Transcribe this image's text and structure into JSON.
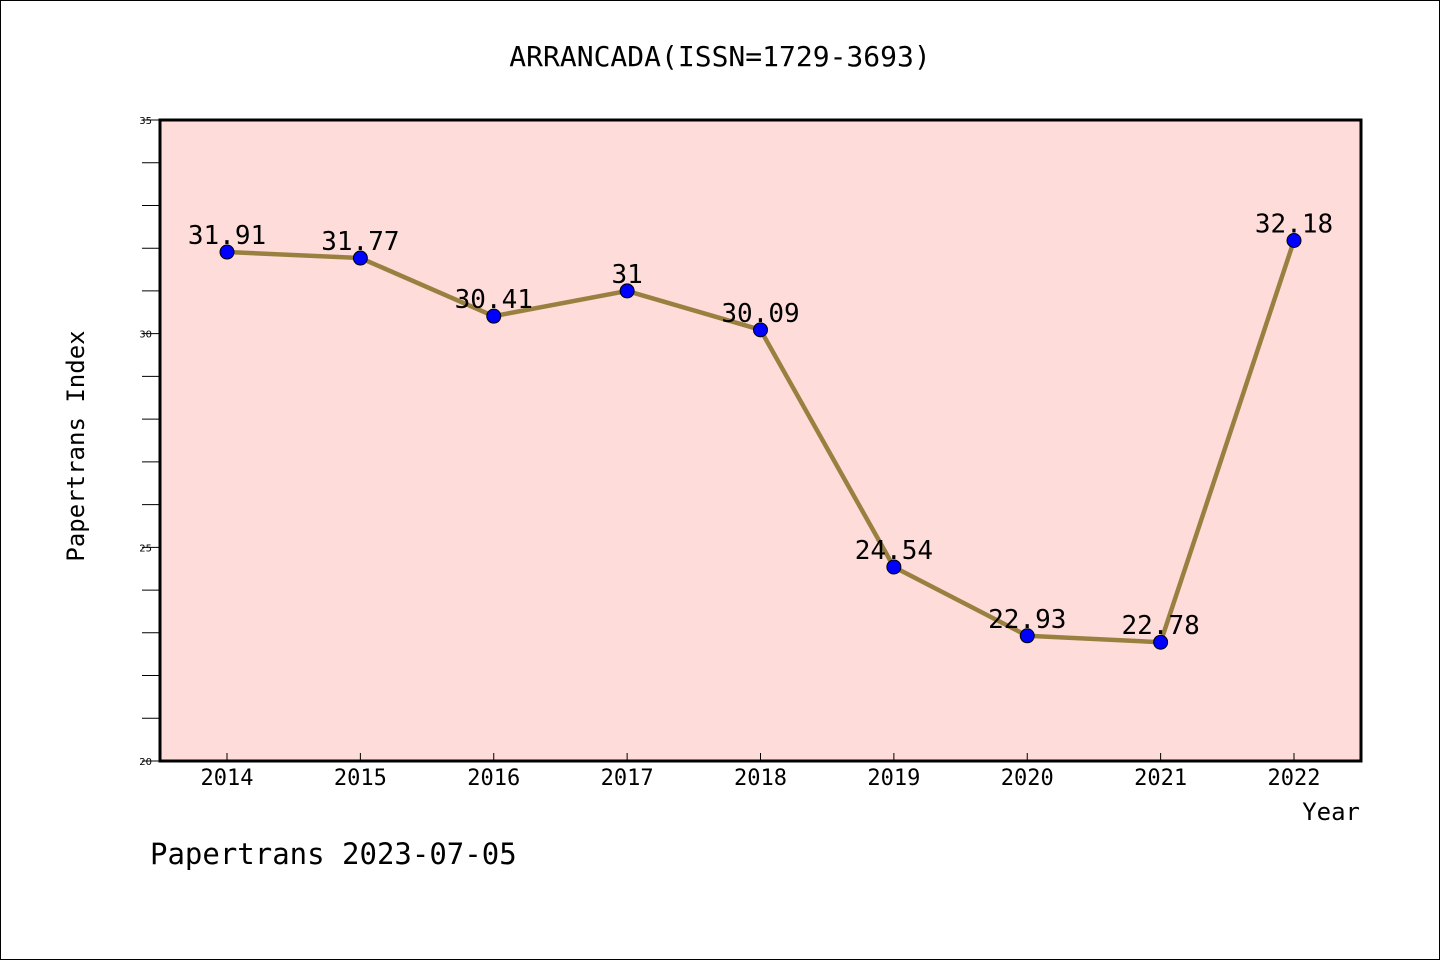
{
  "chart_data": {
    "type": "line",
    "title": "ARRANCADA(ISSN=1729-3693)",
    "xlabel": "Year",
    "ylabel": "Papertrans Index",
    "categories": [
      "2014",
      "2015",
      "2016",
      "2017",
      "2018",
      "2019",
      "2020",
      "2021",
      "2022"
    ],
    "series": [
      {
        "values": [
          31.91,
          31.77,
          30.41,
          31,
          30.09,
          24.54,
          22.93,
          22.78,
          32.18
        ],
        "labels": [
          "31.91",
          "31.77",
          "30.41",
          "31",
          "30.09",
          "24.54",
          "22.93",
          "22.78",
          "32.18"
        ]
      }
    ],
    "ylim": [
      20,
      35
    ],
    "yticks": [
      "20",
      "25",
      "30",
      "35"
    ],
    "grid": false,
    "legend": "none",
    "colors": {
      "plot_background": "#fddcd9",
      "line": "#9a8040",
      "marker": "#0000ff",
      "axis": "#000000"
    },
    "footer": "Papertrans 2023-07-05"
  }
}
